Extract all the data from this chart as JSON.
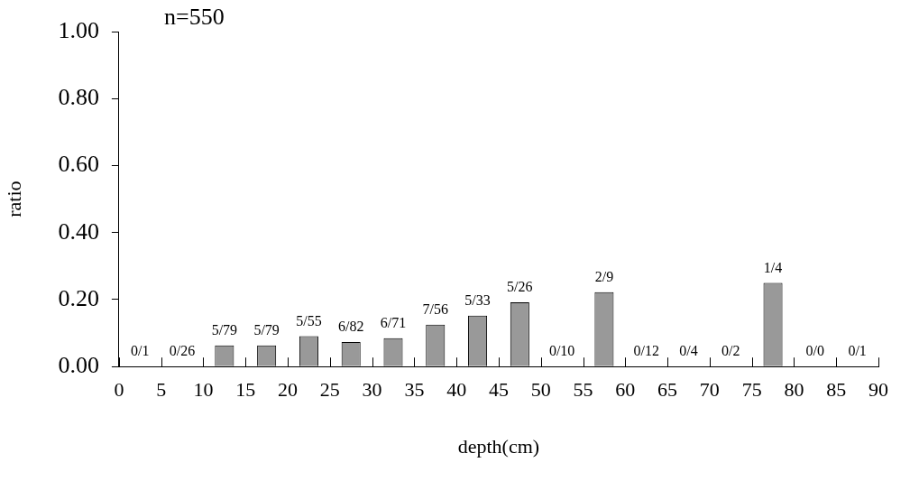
{
  "chart_data": {
    "type": "histogram",
    "xlabel": "depth(cm)",
    "ylabel": "ratio",
    "annotations": [
      "n=550"
    ],
    "bins": [
      0,
      5,
      10,
      15,
      20,
      25,
      30,
      35,
      40,
      45,
      50,
      55,
      60,
      65,
      70,
      75,
      80,
      85,
      90
    ],
    "values": [
      0,
      0,
      0.063,
      0.063,
      0.091,
      0.073,
      0.085,
      0.125,
      0.152,
      0.192,
      0,
      0.222,
      0,
      0,
      0,
      0.25,
      0,
      0
    ],
    "value_labels": [
      "0/1",
      "0/26",
      "5/79",
      "5/79",
      "5/55",
      "6/82",
      "6/71",
      "7/56",
      "5/33",
      "5/26",
      "0/10",
      "2/9",
      "0/12",
      "0/4",
      "0/2",
      "1/4",
      "0/0",
      "0/1"
    ],
    "color": "#999999",
    "xlim": [
      0,
      90
    ],
    "xticks": [
      0,
      5,
      10,
      15,
      20,
      25,
      30,
      35,
      40,
      45,
      50,
      55,
      60,
      65,
      70,
      75,
      80,
      85,
      90
    ],
    "ylim": [
      0,
      1
    ],
    "yticks": [
      {
        "value": 0,
        "label": "0.00"
      },
      {
        "value": 0.2,
        "label": "0.20"
      },
      {
        "value": 0.4,
        "label": "0.40"
      },
      {
        "value": 0.6,
        "label": "0.60"
      },
      {
        "value": 0.8,
        "label": "0.80"
      },
      {
        "value": 1,
        "label": "1.00"
      }
    ],
    "grid": false,
    "legend": false
  }
}
